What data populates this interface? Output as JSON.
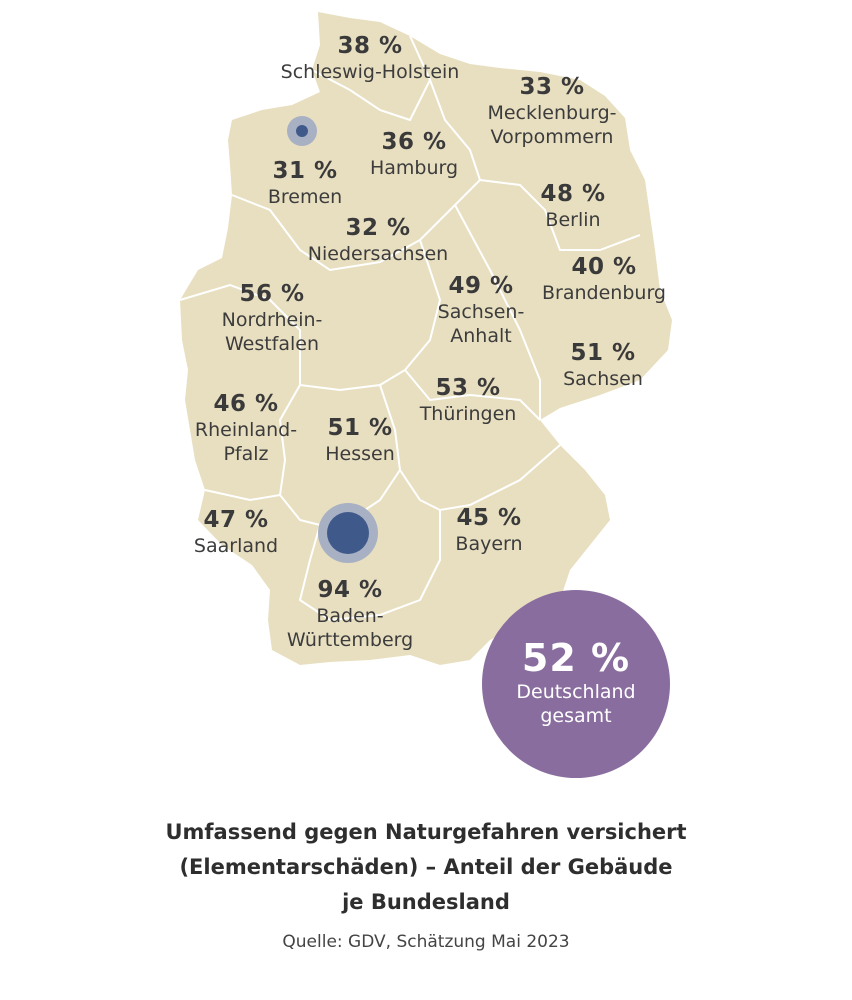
{
  "map": {
    "land_color": "#e8dfc0",
    "border_color": "#ffffff",
    "marker_color": "#3f5a8a",
    "marker_halo_color": "#a8b0c4",
    "markers": [
      {
        "name": "Bremen",
        "value": 31
      },
      {
        "name": "Baden-Württemberg",
        "value": 94
      }
    ]
  },
  "states": [
    {
      "pct": "38 %",
      "name": "Schleswig-Holstein"
    },
    {
      "pct": "33 %",
      "name": "Mecklenburg-\nVorpommern"
    },
    {
      "pct": "36 %",
      "name": "Hamburg"
    },
    {
      "pct": "31 %",
      "name": "Bremen"
    },
    {
      "pct": "48 %",
      "name": "Berlin"
    },
    {
      "pct": "32 %",
      "name": "Niedersachsen"
    },
    {
      "pct": "40 %",
      "name": "Brandenburg"
    },
    {
      "pct": "56 %",
      "name": "Nordrhein-\nWestfalen"
    },
    {
      "pct": "49 %",
      "name": "Sachsen-\nAnhalt"
    },
    {
      "pct": "51 %",
      "name": "Sachsen"
    },
    {
      "pct": "53 %",
      "name": "Thüringen"
    },
    {
      "pct": "46 %",
      "name": "Rheinland-\nPfalz"
    },
    {
      "pct": "51 %",
      "name": "Hessen"
    },
    {
      "pct": "47 %",
      "name": "Saarland"
    },
    {
      "pct": "45 %",
      "name": "Bayern"
    },
    {
      "pct": "94 %",
      "name": "Baden-\nWürttemberg"
    }
  ],
  "total": {
    "pct": "52 %",
    "label_line1": "Deutschland",
    "label_line2": "gesamt",
    "color": "#8a6d9f"
  },
  "caption": {
    "title_line1": "Umfassend gegen Naturgefahren versichert",
    "title_line2": "(Elementarschäden) – Anteil der Gebäude",
    "title_line3": "je Bundesland",
    "source": "Quelle: GDV, Schätzung Mai 2023"
  }
}
